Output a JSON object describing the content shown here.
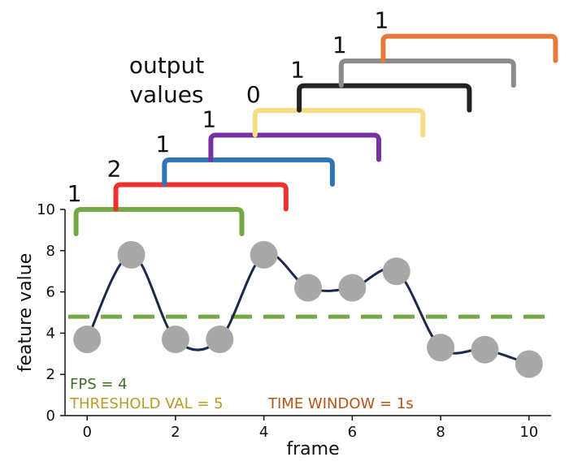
{
  "chart_data": {
    "type": "line",
    "xlabel": "frame",
    "ylabel": "feature value",
    "xlim": [
      -0.5,
      10.5
    ],
    "ylim": [
      0,
      10
    ],
    "xticks": [
      "0",
      "2",
      "4",
      "6",
      "8",
      "10"
    ],
    "yticks": [
      "0",
      "2",
      "4",
      "6",
      "8",
      "10"
    ],
    "x": [
      0,
      1,
      2,
      3,
      4,
      5,
      6,
      7,
      8,
      9,
      10
    ],
    "y": [
      3.7,
      7.8,
      3.7,
      3.7,
      7.8,
      6.2,
      6.2,
      7.0,
      3.3,
      3.2,
      2.5
    ],
    "line_color": "#1a2a4a",
    "marker_color": "#a8a8a8",
    "threshold": {
      "value": 4.8,
      "color": "#73a844",
      "style": "dashed"
    },
    "windows": [
      {
        "start": -0.25,
        "end": 3.5,
        "output": "1",
        "color": "#73a844",
        "level": 10.0
      },
      {
        "start": 0.65,
        "end": 4.5,
        "output": "2",
        "color": "#ec3030",
        "level": 11.2
      },
      {
        "start": 1.75,
        "end": 5.55,
        "output": "1",
        "color": "#2f73b9",
        "level": 12.4
      },
      {
        "start": 2.8,
        "end": 6.6,
        "output": "1",
        "color": "#7532a3",
        "level": 13.6
      },
      {
        "start": 3.8,
        "end": 7.6,
        "output": "0",
        "color": "#f7dc84",
        "level": 14.8
      },
      {
        "start": 4.8,
        "end": 8.65,
        "output": "1",
        "color": "#222222",
        "level": 16.0
      },
      {
        "start": 5.75,
        "end": 9.65,
        "output": "1",
        "color": "#8a8a8a",
        "level": 17.2
      },
      {
        "start": 6.7,
        "end": 10.6,
        "output": "1",
        "color": "#e57b3a",
        "level": 18.4
      }
    ],
    "output_title": [
      "output",
      "values"
    ],
    "annotations": {
      "fps": {
        "text": "FPS = 4",
        "color": "#3e6e28"
      },
      "threshold": {
        "text": "THRESHOLD VAL = 5",
        "color": "#b79b2a"
      },
      "time_window": {
        "text": "TIME WINDOW = 1s",
        "color": "#b5551a"
      }
    }
  }
}
